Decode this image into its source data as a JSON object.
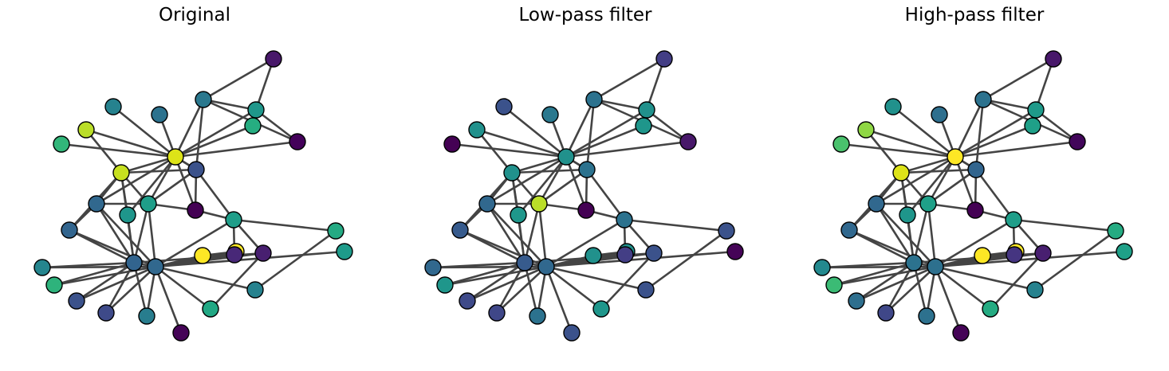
{
  "panels": [
    {
      "title": "Original",
      "node_colors": [
        "#dde318",
        "#c7e020",
        "#1f9e89",
        "#3b528b",
        "#fde725",
        "#fde725",
        "#482878",
        "#440154",
        "#32648e",
        "#481f70",
        "#1f968b",
        "#bade28",
        "#2c728e",
        "#31688e",
        "#25858e",
        "#2eb37c",
        "#26828e",
        "#22a884",
        "#3b528b",
        "#3e4a89",
        "#287d8e",
        "#450457",
        "#32658e",
        "#31688e",
        "#1f9e89",
        "#24aa83",
        "#1e9b8a",
        "#32b67a",
        "#26828e",
        "#2a788e",
        "#26ad81",
        "#1f978b",
        "#44015a",
        "#48186a"
      ]
    },
    {
      "title": "Low-pass filter",
      "node_colors": [
        "#21918c",
        "#21918c",
        "#bade28",
        "#2c728e",
        "#21918c",
        "#21918c",
        "#433e85",
        "#440154",
        "#375b8d",
        "#3b528b",
        "#1f978b",
        "#21918c",
        "#2a788e",
        "#31688e",
        "#31688e",
        "#1f968b",
        "#3b528b",
        "#1f968b",
        "#3e4a89",
        "#3f4788",
        "#2c728e",
        "#3b528b",
        "#375b8d",
        "#31688e",
        "#2c728e",
        "#3b528b",
        "#450457",
        "#440154",
        "#3b528b",
        "#2c728e",
        "#1f968b",
        "#21918c",
        "#48186a",
        "#433e85"
      ]
    },
    {
      "title": "High-pass filter",
      "node_colors": [
        "#fde725",
        "#dde318",
        "#1fa088",
        "#32658e",
        "#fde725",
        "#fde725",
        "#453581",
        "#440154",
        "#2c728e",
        "#481f70",
        "#1f968b",
        "#8fd744",
        "#2e6f8e",
        "#31688e",
        "#23898e",
        "#3bbb75",
        "#26828e",
        "#25ab82",
        "#2e6f8e",
        "#3f4788",
        "#2d718e",
        "#450457",
        "#31688e",
        "#2d708e",
        "#1f9e89",
        "#25ab82",
        "#1fa088",
        "#4ac16d",
        "#21918c",
        "#2c728e",
        "#1fa088",
        "#1f9a8a",
        "#42065a",
        "#48186a"
      ]
    }
  ]
}
